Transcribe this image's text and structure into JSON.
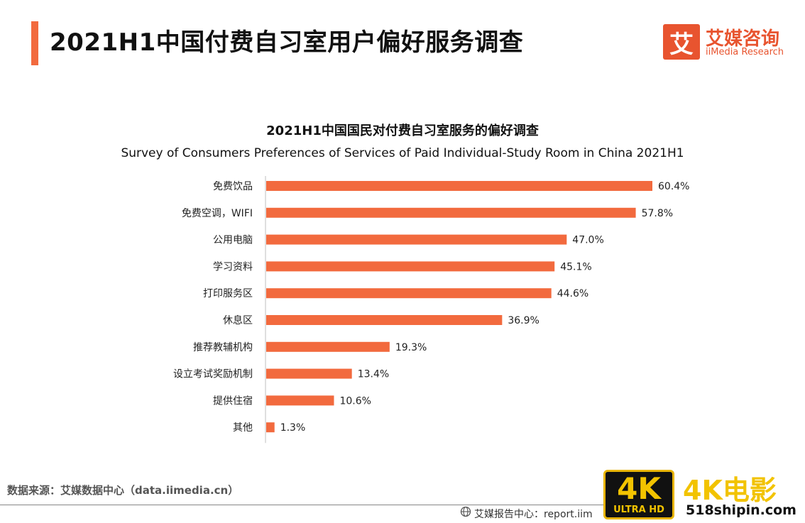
{
  "header": {
    "title": "2021H1中国付费自习室用户偏好服务调查",
    "accent_color": "#f26a3e"
  },
  "logo": {
    "mark": "艾",
    "name_cn": "艾媒咨询",
    "name_en": "iiMedia Research",
    "color": "#e8542f"
  },
  "chart_data": {
    "type": "bar",
    "orientation": "horizontal",
    "title": "2021H1中国国民对付费自习室服务的偏好调查",
    "subtitle": "Survey of Consumers Preferences of Services of Paid Individual-Study Room in China 2021H1",
    "categories": [
      "免费饮品",
      "免费空调，WIFI",
      "公用电脑",
      "学习资料",
      "打印服务区",
      "休息区",
      "推荐教辅机构",
      "设立考试奖励机制",
      "提供住宿",
      "其他"
    ],
    "values": [
      60.4,
      57.8,
      47.0,
      45.1,
      44.6,
      36.9,
      19.3,
      13.4,
      10.6,
      1.3
    ],
    "value_labels": [
      "60.4%",
      "57.8%",
      "47.0%",
      "45.1%",
      "44.6%",
      "36.9%",
      "19.3%",
      "13.4%",
      "10.6%",
      "1.3%"
    ],
    "xlim": [
      0,
      65
    ],
    "grid": false,
    "bar_color": "#f26a3e"
  },
  "footer": {
    "source": "数据来源：艾媒数据中心（data.iimedia.cn）",
    "report_center": "艾媒报告中心：report.iim"
  },
  "watermark": {
    "badge_main": "4K",
    "badge_sub": "ULTRA HD",
    "name": "4K电影",
    "url": "518shipin.com"
  }
}
